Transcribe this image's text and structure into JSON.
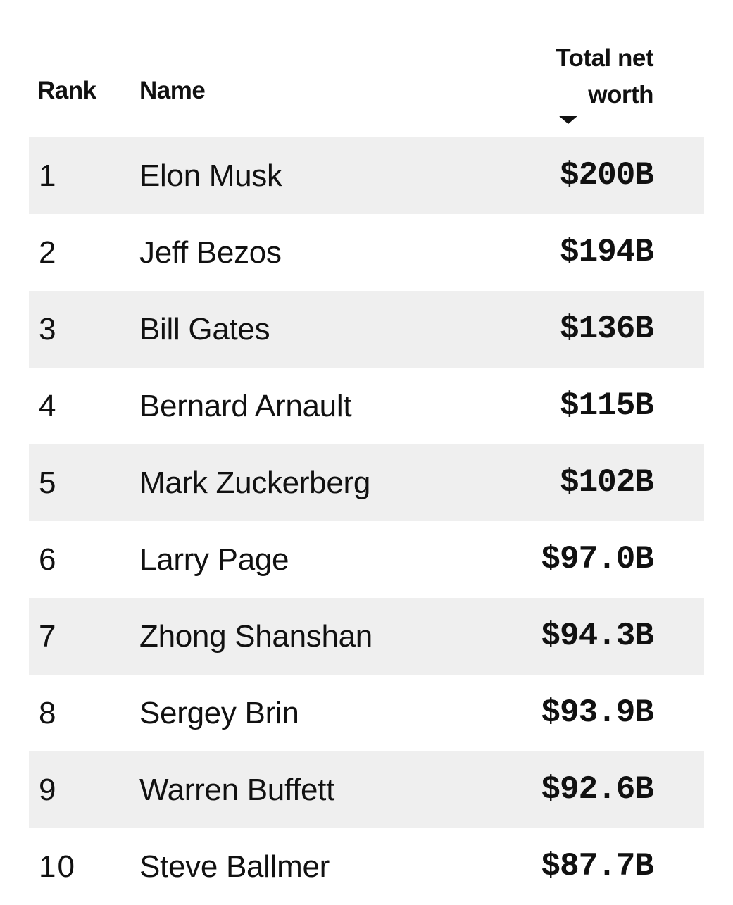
{
  "header": {
    "rank": "Rank",
    "name": "Name",
    "worth_line1": "Total net",
    "worth_line2": "worth",
    "sort_icon": "caret-down-icon"
  },
  "rows": [
    {
      "rank": "1",
      "name": "Elon Musk",
      "worth": "$200B"
    },
    {
      "rank": "2",
      "name": "Jeff Bezos",
      "worth": "$194B"
    },
    {
      "rank": "3",
      "name": "Bill Gates",
      "worth": "$136B"
    },
    {
      "rank": "4",
      "name": "Bernard Arnault",
      "worth": "$115B"
    },
    {
      "rank": "5",
      "name": "Mark Zuckerberg",
      "worth": "$102B"
    },
    {
      "rank": "6",
      "name": "Larry Page",
      "worth": "$97.0B"
    },
    {
      "rank": "7",
      "name": "Zhong Shanshan",
      "worth": "$94.3B"
    },
    {
      "rank": "8",
      "name": "Sergey Brin",
      "worth": "$93.9B"
    },
    {
      "rank": "9",
      "name": "Warren Buffett",
      "worth": "$92.6B"
    },
    {
      "rank": "10",
      "name": "Steve Ballmer",
      "worth": "$87.7B"
    }
  ],
  "colors": {
    "stripe": "#efefef",
    "text": "#111111"
  }
}
